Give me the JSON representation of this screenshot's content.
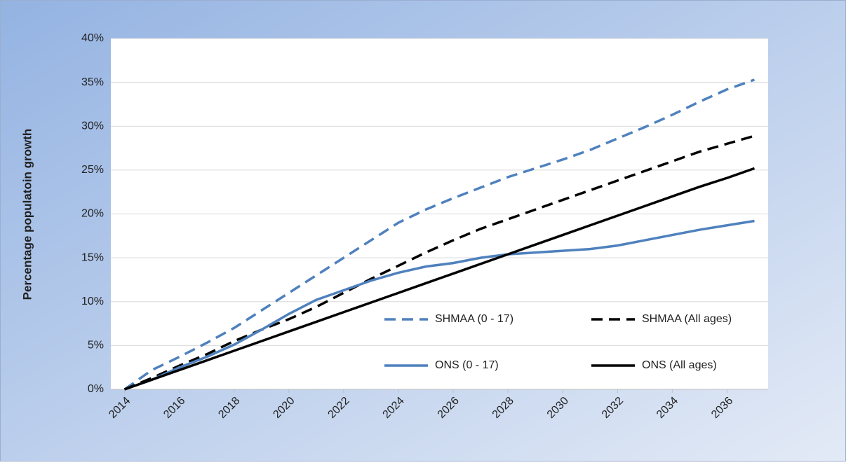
{
  "chart_data": {
    "type": "line",
    "y_label": "Percentage populatoin growth",
    "x": [
      2014,
      2015,
      2016,
      2017,
      2018,
      2019,
      2020,
      2021,
      2022,
      2023,
      2024,
      2025,
      2026,
      2027,
      2028,
      2029,
      2030,
      2031,
      2032,
      2033,
      2034,
      2035,
      2036,
      2037
    ],
    "xlim": [
      2013.5,
      2037.5
    ],
    "xticks": [
      2014,
      2016,
      2018,
      2020,
      2022,
      2024,
      2026,
      2028,
      2030,
      2032,
      2034,
      2036
    ],
    "ylim": [
      0,
      40
    ],
    "yticks": [
      {
        "value": 0,
        "label": "0%"
      },
      {
        "value": 5,
        "label": "5%"
      },
      {
        "value": 10,
        "label": "10%"
      },
      {
        "value": 15,
        "label": "15%"
      },
      {
        "value": 20,
        "label": "20%"
      },
      {
        "value": 25,
        "label": "25%"
      },
      {
        "value": 30,
        "label": "30%"
      },
      {
        "value": 35,
        "label": "35%"
      },
      {
        "value": 40,
        "label": "40%"
      }
    ],
    "grid": true,
    "series": [
      {
        "name": "SHMAA (0 - 17)",
        "color": "#4f81bd",
        "style": "dashed",
        "values": [
          0,
          2.2,
          3.7,
          5.3,
          7,
          9,
          11,
          13,
          15,
          17,
          19,
          20.5,
          21.8,
          23,
          24.2,
          25.2,
          26.2,
          27.3,
          28.6,
          29.9,
          31.3,
          32.8,
          34.2,
          35.3
        ]
      },
      {
        "name": "SHMAA (All ages)",
        "color": "#000000",
        "style": "dashed",
        "values": [
          0,
          1.3,
          2.7,
          4,
          5.5,
          6.8,
          8,
          9.4,
          11,
          12.6,
          14.1,
          15.6,
          17,
          18.3,
          19.4,
          20.5,
          21.6,
          22.7,
          23.8,
          24.9,
          26,
          27.1,
          28,
          28.9
        ]
      },
      {
        "name": "ONS (0 - 17)",
        "color": "#4f81bd",
        "style": "solid",
        "values": [
          0,
          1.1,
          2.5,
          3.7,
          5.1,
          6.8,
          8.6,
          10.2,
          11.3,
          12.4,
          13.3,
          14,
          14.4,
          15,
          15.4,
          15.6,
          15.8,
          16,
          16.4,
          17,
          17.6,
          18.2,
          18.7,
          19.2
        ]
      },
      {
        "name": "ONS (All ages)",
        "color": "#000000",
        "style": "solid",
        "values": [
          0,
          1.1,
          2.2,
          3.3,
          4.4,
          5.5,
          6.6,
          7.7,
          8.8,
          9.9,
          11,
          12.1,
          13.2,
          14.3,
          15.4,
          16.5,
          17.6,
          18.7,
          19.8,
          20.9,
          22,
          23.1,
          24.1,
          25.2
        ]
      }
    ]
  }
}
